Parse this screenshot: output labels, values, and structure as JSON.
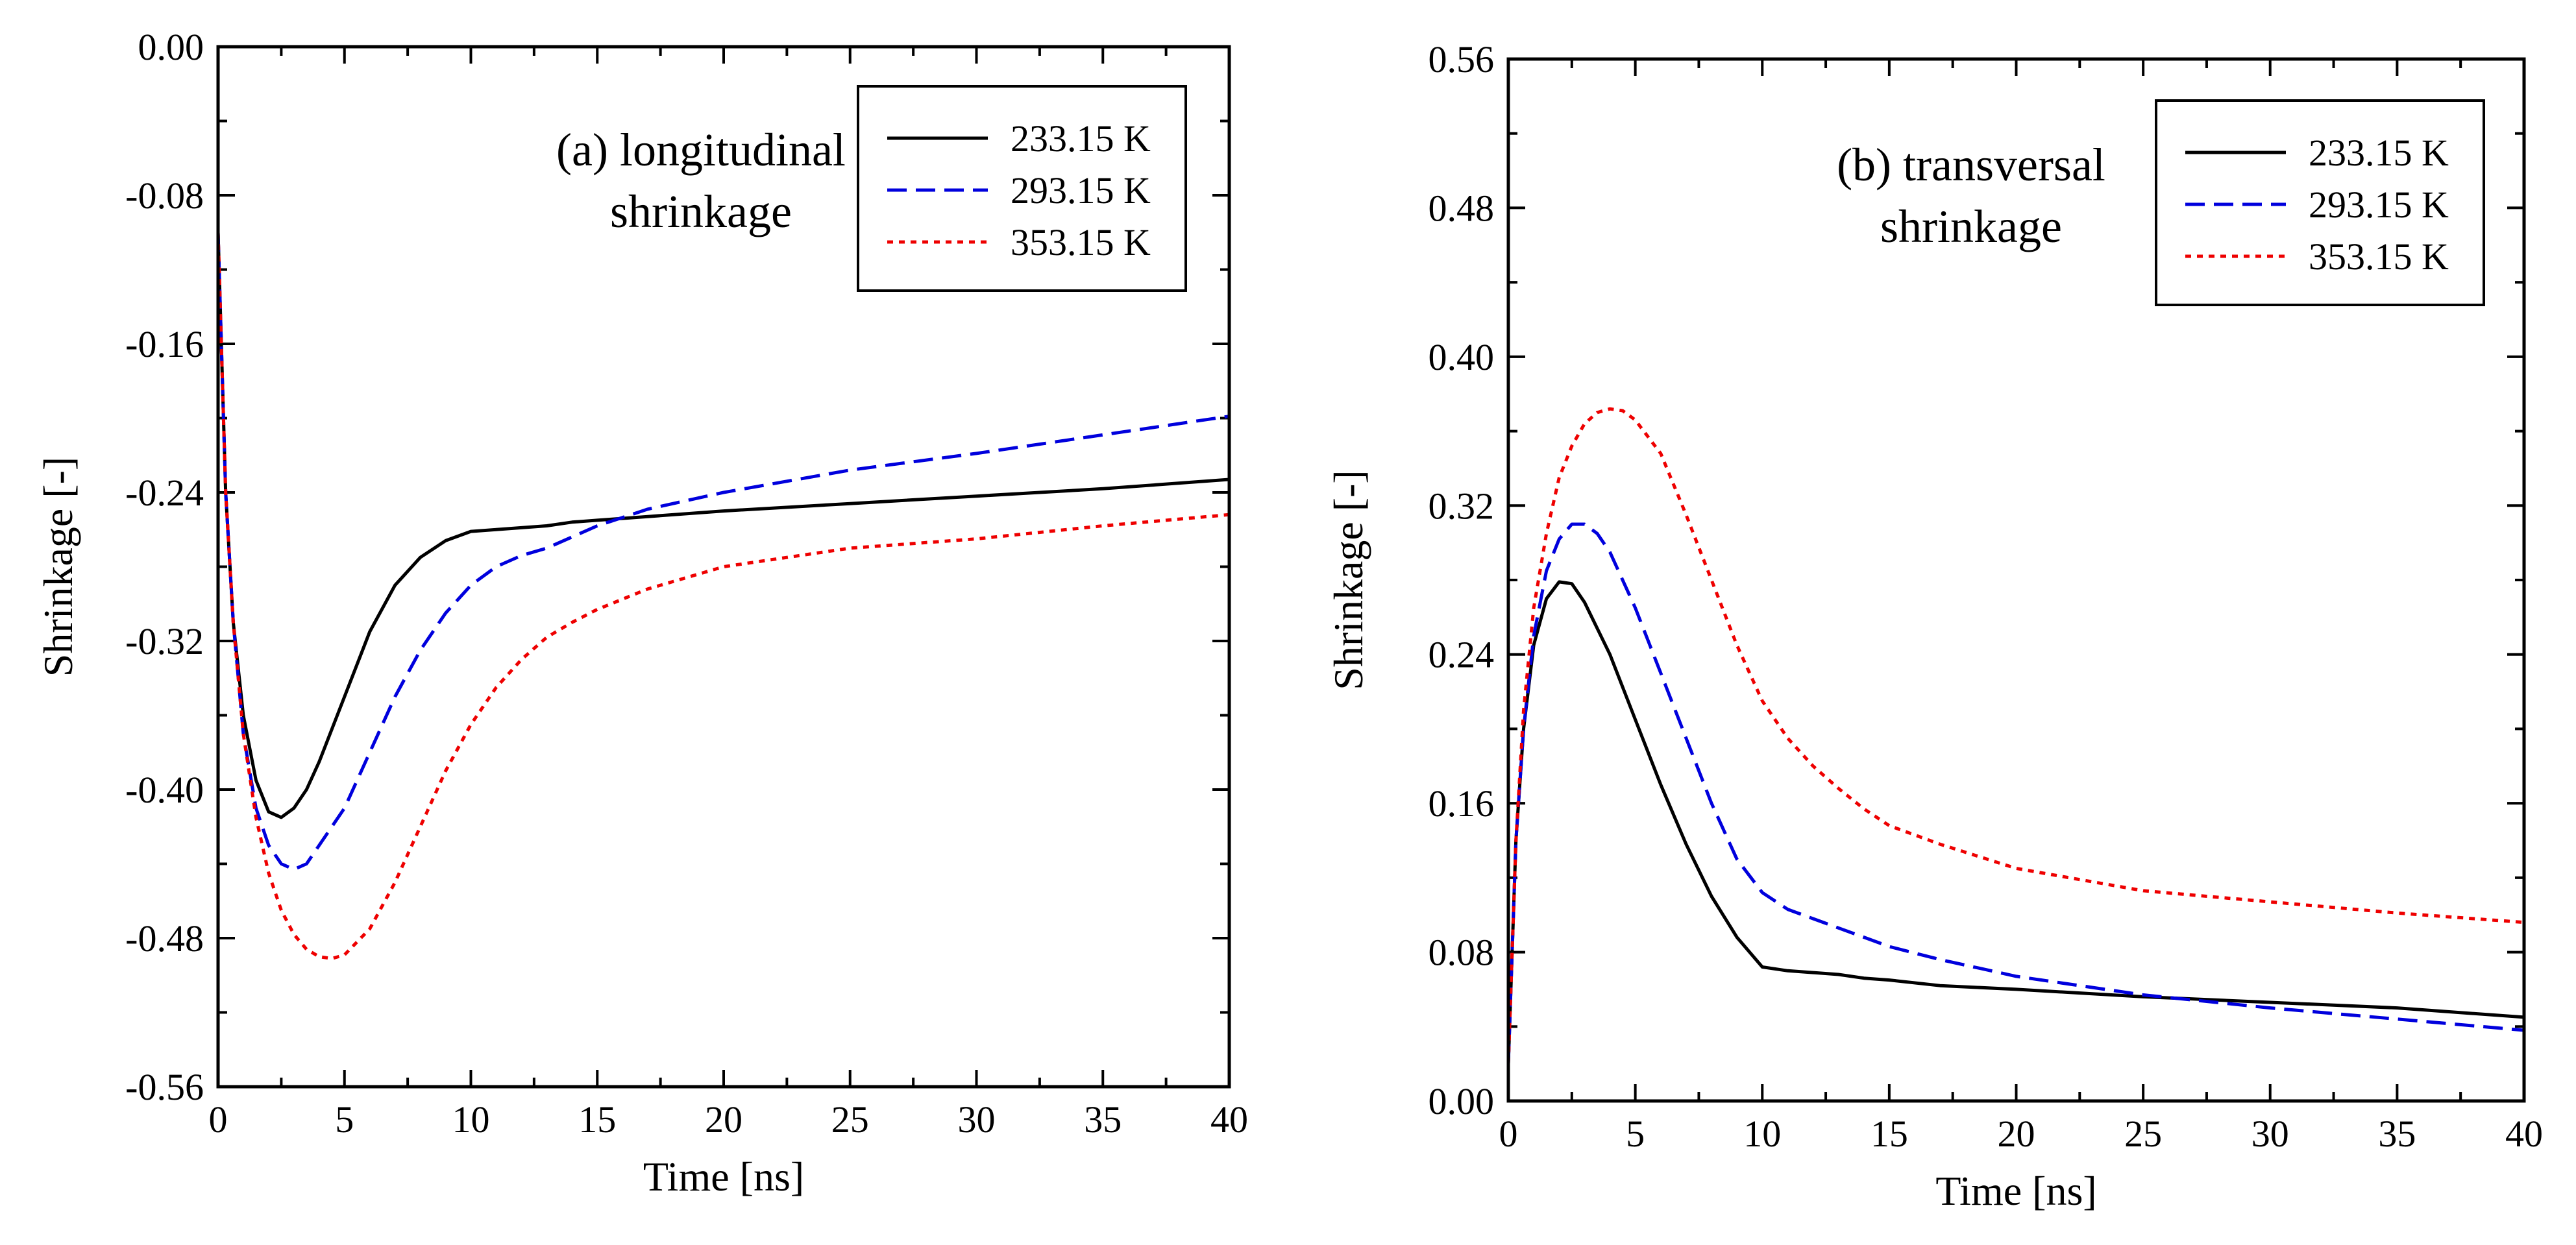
{
  "chart_data": [
    {
      "type": "line",
      "title_line1": "(a) longitudinal",
      "title_line2": "shrinkage",
      "xlabel": "Time [ns]",
      "ylabel": "Shrinkage [-]",
      "xlim": [
        0,
        40
      ],
      "ylim": [
        -0.56,
        0.0
      ],
      "xticks": [
        0,
        5,
        10,
        15,
        20,
        25,
        30,
        35,
        40
      ],
      "yticks": [
        0.0,
        -0.08,
        -0.16,
        -0.24,
        -0.32,
        -0.4,
        -0.48,
        -0.56
      ],
      "xtick_labels": [
        "0",
        "5",
        "10",
        "15",
        "20",
        "25",
        "30",
        "35",
        "40"
      ],
      "ytick_labels": [
        "0.00",
        "-0.08",
        "-0.16",
        "-0.24",
        "-0.32",
        "-0.40",
        "-0.48",
        "-0.56"
      ],
      "legend_position": "top-right",
      "series": [
        {
          "name": "233.15 K",
          "color": "#000000",
          "dash": "solid",
          "x": [
            0,
            0.3,
            0.6,
            1,
            1.5,
            2,
            2.5,
            3,
            3.5,
            4,
            5,
            6,
            7,
            8,
            9,
            10,
            11,
            12,
            13,
            14,
            15,
            17,
            20,
            25,
            30,
            35,
            40
          ],
          "y": [
            -0.1,
            -0.24,
            -0.31,
            -0.36,
            -0.395,
            -0.412,
            -0.415,
            -0.41,
            -0.4,
            -0.385,
            -0.35,
            -0.315,
            -0.29,
            -0.275,
            -0.266,
            -0.261,
            -0.26,
            -0.259,
            -0.258,
            -0.256,
            -0.255,
            -0.253,
            -0.25,
            -0.246,
            -0.242,
            -0.238,
            -0.233
          ]
        },
        {
          "name": "293.15 K",
          "color": "#0000dd",
          "dash": "dashed",
          "x": [
            0,
            0.3,
            0.6,
            1,
            1.5,
            2,
            2.5,
            3,
            3.5,
            4,
            5,
            6,
            7,
            8,
            9,
            10,
            11,
            12,
            13,
            14,
            15,
            17,
            20,
            25,
            30,
            35,
            40
          ],
          "y": [
            -0.1,
            -0.24,
            -0.31,
            -0.37,
            -0.41,
            -0.43,
            -0.44,
            -0.443,
            -0.44,
            -0.43,
            -0.41,
            -0.38,
            -0.35,
            -0.325,
            -0.305,
            -0.29,
            -0.28,
            -0.274,
            -0.27,
            -0.264,
            -0.258,
            -0.249,
            -0.24,
            -0.228,
            -0.219,
            -0.209,
            -0.199
          ]
        },
        {
          "name": "353.15 K",
          "color": "#ee0000",
          "dash": "dotted",
          "x": [
            0,
            0.3,
            0.6,
            1,
            1.5,
            2,
            2.5,
            3,
            3.5,
            4,
            4.5,
            5,
            6,
            7,
            8,
            9,
            10,
            11,
            12,
            13,
            14,
            15,
            17,
            20,
            25,
            30,
            35,
            40
          ],
          "y": [
            -0.1,
            -0.24,
            -0.31,
            -0.37,
            -0.415,
            -0.445,
            -0.465,
            -0.478,
            -0.486,
            -0.49,
            -0.491,
            -0.489,
            -0.475,
            -0.45,
            -0.42,
            -0.39,
            -0.365,
            -0.345,
            -0.33,
            -0.318,
            -0.31,
            -0.303,
            -0.292,
            -0.28,
            -0.27,
            -0.265,
            -0.258,
            -0.252
          ]
        }
      ]
    },
    {
      "type": "line",
      "title_line1": "(b) transversal",
      "title_line2": "shrinkage",
      "xlabel": "Time [ns]",
      "ylabel": "Shrinkage [-]",
      "xlim": [
        0,
        40
      ],
      "ylim": [
        0.0,
        0.56
      ],
      "xticks": [
        0,
        5,
        10,
        15,
        20,
        25,
        30,
        35,
        40
      ],
      "yticks": [
        0.0,
        0.08,
        0.16,
        0.24,
        0.32,
        0.4,
        0.48,
        0.56
      ],
      "xtick_labels": [
        "0",
        "5",
        "10",
        "15",
        "20",
        "25",
        "30",
        "35",
        "40"
      ],
      "ytick_labels": [
        "0.00",
        "0.08",
        "0.16",
        "0.24",
        "0.32",
        "0.40",
        "0.48",
        "0.56"
      ],
      "legend_position": "top-right",
      "series": [
        {
          "name": "233.15 K",
          "color": "#000000",
          "dash": "solid",
          "x": [
            0,
            0.3,
            0.6,
            1,
            1.5,
            2,
            2.5,
            3,
            4,
            5,
            6,
            7,
            8,
            9,
            10,
            11,
            12,
            13,
            14,
            15,
            17,
            20,
            25,
            30,
            35,
            40
          ],
          "y": [
            0.02,
            0.14,
            0.2,
            0.245,
            0.27,
            0.279,
            0.278,
            0.268,
            0.24,
            0.205,
            0.17,
            0.138,
            0.11,
            0.088,
            0.072,
            0.07,
            0.069,
            0.068,
            0.066,
            0.065,
            0.062,
            0.06,
            0.056,
            0.053,
            0.05,
            0.045
          ]
        },
        {
          "name": "293.15 K",
          "color": "#0000dd",
          "dash": "dashed",
          "x": [
            0,
            0.3,
            0.6,
            1,
            1.5,
            2,
            2.5,
            3,
            3.5,
            4,
            5,
            6,
            7,
            8,
            9,
            10,
            11,
            12,
            13,
            14,
            15,
            17,
            20,
            25,
            30,
            35,
            40
          ],
          "y": [
            0.02,
            0.14,
            0.2,
            0.25,
            0.285,
            0.302,
            0.31,
            0.31,
            0.305,
            0.295,
            0.265,
            0.23,
            0.195,
            0.16,
            0.13,
            0.112,
            0.103,
            0.098,
            0.093,
            0.088,
            0.083,
            0.076,
            0.067,
            0.057,
            0.05,
            0.044,
            0.038
          ]
        },
        {
          "name": "353.15 K",
          "color": "#ee0000",
          "dash": "dotted",
          "x": [
            0,
            0.3,
            0.6,
            1,
            1.5,
            2,
            2.5,
            3,
            3.5,
            4,
            4.5,
            5,
            6,
            7,
            8,
            9,
            10,
            11,
            12,
            13,
            14,
            15,
            17,
            20,
            25,
            30,
            35,
            40
          ],
          "y": [
            0.02,
            0.14,
            0.21,
            0.265,
            0.305,
            0.335,
            0.352,
            0.364,
            0.37,
            0.372,
            0.371,
            0.366,
            0.348,
            0.315,
            0.28,
            0.245,
            0.215,
            0.195,
            0.18,
            0.168,
            0.157,
            0.148,
            0.138,
            0.125,
            0.113,
            0.107,
            0.101,
            0.096
          ]
        }
      ]
    }
  ]
}
